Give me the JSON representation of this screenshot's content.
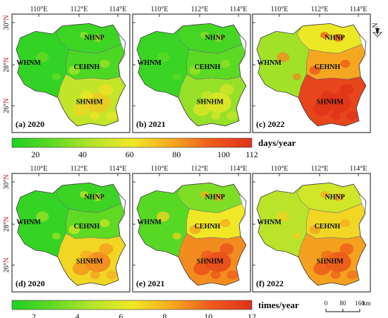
{
  "lon_ticks": [
    "110°E",
    "112°E",
    "114°E"
  ],
  "lat_ticks": [
    {
      "deg": "30°",
      "hem": "N"
    },
    {
      "deg": "28°",
      "hem": "N"
    },
    {
      "deg": "26°",
      "hem": "N"
    }
  ],
  "regions": [
    "NHNP",
    "WHNM",
    "CEHNH",
    "SHNHM"
  ],
  "sections": [
    {
      "unit": "days/year",
      "colorbar_ticks": [
        "20",
        "40",
        "60",
        "80",
        "100",
        "112"
      ],
      "colorbar_range": [
        10,
        112
      ],
      "panels": [
        {
          "label": "(a) 2020",
          "level": {
            "NHNP": 18,
            "WHNM": 15,
            "CEHNH": 22,
            "SHNHM": 48
          }
        },
        {
          "label": "(b) 2021",
          "level": {
            "NHNP": 20,
            "WHNM": 17,
            "CEHNH": 26,
            "SHNHM": 38
          }
        },
        {
          "label": "(c) 2022",
          "level": {
            "NHNP": 60,
            "WHNM": 40,
            "CEHNH": 78,
            "SHNHM": 104
          }
        }
      ]
    },
    {
      "unit": "times/year",
      "colorbar_ticks": [
        "2",
        "4",
        "6",
        "8",
        "10",
        "12"
      ],
      "colorbar_range": [
        1,
        12
      ],
      "panels": [
        {
          "label": "(d) 2020",
          "level": {
            "NHNP": 1.8,
            "WHNM": 1.6,
            "CEHNH": 2.8,
            "SHNHM": 7.0
          }
        },
        {
          "label": "(e) 2021",
          "level": {
            "NHNP": 3.5,
            "WHNM": 2.6,
            "CEHNH": 6.5,
            "SHNHM": 9.0
          }
        },
        {
          "label": "(f) 2022",
          "level": {
            "NHNP": 5.5,
            "WHNM": 4.8,
            "CEHNH": 7.0,
            "SHNHM": 8.5
          }
        }
      ]
    }
  ],
  "north_arrow": "N",
  "scale_bar": {
    "ticks": [
      "0",
      "80",
      "160"
    ],
    "unit": "km"
  },
  "colors": [
    "#1fd025",
    "#5fda23",
    "#b5e42a",
    "#f0e826",
    "#f5a81f",
    "#ef5a1c",
    "#e0321a"
  ]
}
